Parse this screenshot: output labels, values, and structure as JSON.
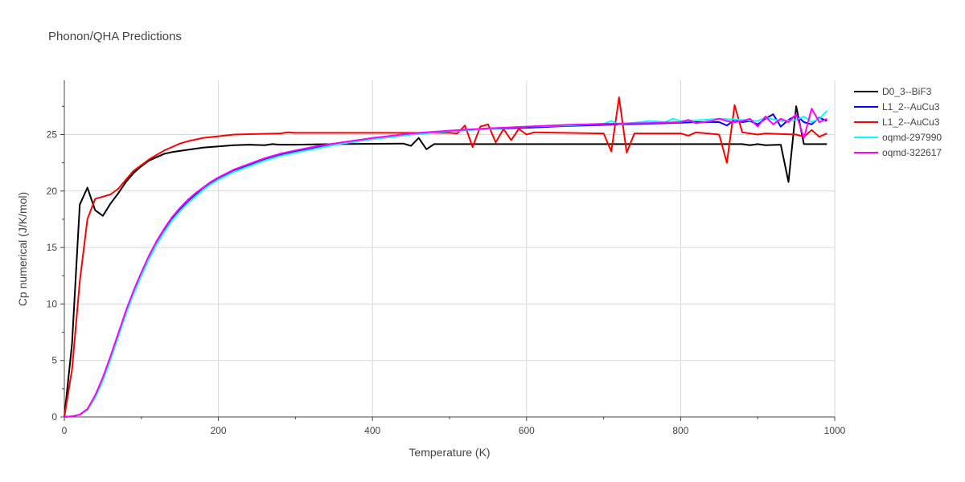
{
  "chart_data": {
    "type": "line",
    "title": "Phonon/QHA Predictions",
    "xlabel": "Temperature (K)",
    "ylabel": "Cp numerical (J/K/mol)",
    "xlim": [
      0,
      1000
    ],
    "ylim": [
      0,
      29.8
    ],
    "xticks": [
      0,
      200,
      400,
      600,
      800,
      1000
    ],
    "yticks": [
      0,
      5,
      10,
      15,
      20,
      25
    ],
    "grid": true,
    "legend_position": "top-right",
    "series": [
      {
        "name": "D0_3--BiF3",
        "color": "#000000",
        "points": [
          [
            0,
            0
          ],
          [
            10,
            6.5
          ],
          [
            20,
            18.8
          ],
          [
            30,
            20.3
          ],
          [
            40,
            18.3
          ],
          [
            50,
            17.8
          ],
          [
            60,
            18.9
          ],
          [
            70,
            19.8
          ],
          [
            80,
            20.8
          ],
          [
            90,
            21.6
          ],
          [
            100,
            22.2
          ],
          [
            110,
            22.7
          ],
          [
            120,
            23.0
          ],
          [
            130,
            23.3
          ],
          [
            140,
            23.45
          ],
          [
            150,
            23.55
          ],
          [
            160,
            23.65
          ],
          [
            170,
            23.75
          ],
          [
            180,
            23.85
          ],
          [
            200,
            23.95
          ],
          [
            220,
            24.05
          ],
          [
            240,
            24.1
          ],
          [
            260,
            24.05
          ],
          [
            270,
            24.15
          ],
          [
            280,
            24.1
          ],
          [
            300,
            24.1
          ],
          [
            350,
            24.15
          ],
          [
            400,
            24.18
          ],
          [
            440,
            24.2
          ],
          [
            450,
            24.0
          ],
          [
            460,
            24.7
          ],
          [
            470,
            23.7
          ],
          [
            480,
            24.15
          ],
          [
            500,
            24.15
          ],
          [
            600,
            24.15
          ],
          [
            700,
            24.15
          ],
          [
            800,
            24.15
          ],
          [
            850,
            24.15
          ],
          [
            880,
            24.15
          ],
          [
            890,
            24.05
          ],
          [
            900,
            24.15
          ],
          [
            910,
            24.05
          ],
          [
            930,
            24.1
          ],
          [
            940,
            20.8
          ],
          [
            950,
            27.5
          ],
          [
            960,
            24.15
          ],
          [
            970,
            24.15
          ],
          [
            990,
            24.15
          ]
        ]
      },
      {
        "name": "L1_2--AuCu3",
        "color": "#0000ff",
        "points": [
          [
            0,
            0
          ],
          [
            10,
            0.05
          ],
          [
            20,
            0.2
          ],
          [
            30,
            0.7
          ],
          [
            40,
            1.8
          ],
          [
            50,
            3.4
          ],
          [
            60,
            5.3
          ],
          [
            70,
            7.3
          ],
          [
            80,
            9.3
          ],
          [
            90,
            11.1
          ],
          [
            100,
            12.7
          ],
          [
            110,
            14.2
          ],
          [
            120,
            15.5
          ],
          [
            130,
            16.6
          ],
          [
            140,
            17.6
          ],
          [
            150,
            18.4
          ],
          [
            160,
            19.1
          ],
          [
            170,
            19.7
          ],
          [
            180,
            20.2
          ],
          [
            190,
            20.7
          ],
          [
            200,
            21.1
          ],
          [
            220,
            21.8
          ],
          [
            240,
            22.3
          ],
          [
            260,
            22.8
          ],
          [
            280,
            23.2
          ],
          [
            300,
            23.5
          ],
          [
            330,
            23.9
          ],
          [
            360,
            24.2
          ],
          [
            400,
            24.6
          ],
          [
            450,
            25.0
          ],
          [
            500,
            25.3
          ],
          [
            550,
            25.5
          ],
          [
            600,
            25.6
          ],
          [
            650,
            25.75
          ],
          [
            700,
            25.85
          ],
          [
            750,
            25.95
          ],
          [
            780,
            26.0
          ],
          [
            800,
            26.05
          ],
          [
            820,
            26.1
          ],
          [
            850,
            26.1
          ],
          [
            860,
            25.8
          ],
          [
            870,
            26.3
          ],
          [
            880,
            26.1
          ],
          [
            890,
            26.2
          ],
          [
            900,
            25.9
          ],
          [
            910,
            26.4
          ],
          [
            920,
            26.8
          ],
          [
            930,
            25.7
          ],
          [
            940,
            26.3
          ],
          [
            950,
            26.7
          ],
          [
            960,
            26.1
          ],
          [
            970,
            25.9
          ],
          [
            980,
            26.5
          ],
          [
            990,
            26.2
          ]
        ]
      },
      {
        "name": "L1_2--AuCu3",
        "color": "#ff0000",
        "points": [
          [
            0,
            0
          ],
          [
            10,
            4.2
          ],
          [
            20,
            12.0
          ],
          [
            30,
            17.5
          ],
          [
            40,
            19.3
          ],
          [
            50,
            19.5
          ],
          [
            60,
            19.7
          ],
          [
            70,
            20.2
          ],
          [
            80,
            21.0
          ],
          [
            90,
            21.8
          ],
          [
            100,
            22.3
          ],
          [
            110,
            22.8
          ],
          [
            120,
            23.2
          ],
          [
            130,
            23.6
          ],
          [
            140,
            23.9
          ],
          [
            150,
            24.2
          ],
          [
            160,
            24.4
          ],
          [
            180,
            24.7
          ],
          [
            200,
            24.85
          ],
          [
            220,
            25.0
          ],
          [
            250,
            25.05
          ],
          [
            280,
            25.1
          ],
          [
            290,
            25.2
          ],
          [
            300,
            25.15
          ],
          [
            350,
            25.15
          ],
          [
            400,
            25.15
          ],
          [
            450,
            25.15
          ],
          [
            500,
            25.15
          ],
          [
            510,
            25.1
          ],
          [
            520,
            25.8
          ],
          [
            530,
            23.9
          ],
          [
            540,
            25.7
          ],
          [
            550,
            25.9
          ],
          [
            560,
            24.3
          ],
          [
            570,
            25.5
          ],
          [
            580,
            24.5
          ],
          [
            590,
            25.5
          ],
          [
            600,
            25.0
          ],
          [
            610,
            25.2
          ],
          [
            700,
            25.1
          ],
          [
            710,
            23.5
          ],
          [
            720,
            28.3
          ],
          [
            730,
            23.4
          ],
          [
            740,
            25.1
          ],
          [
            800,
            25.1
          ],
          [
            810,
            24.9
          ],
          [
            820,
            25.2
          ],
          [
            850,
            25.0
          ],
          [
            860,
            22.5
          ],
          [
            870,
            27.6
          ],
          [
            880,
            25.2
          ],
          [
            900,
            25.0
          ],
          [
            910,
            25.1
          ],
          [
            950,
            25.0
          ],
          [
            960,
            24.8
          ],
          [
            970,
            25.4
          ],
          [
            980,
            24.8
          ],
          [
            990,
            25.1
          ]
        ]
      },
      {
        "name": "oqmd-297990",
        "color": "#00ffff",
        "points": [
          [
            0,
            0
          ],
          [
            10,
            0.05
          ],
          [
            20,
            0.2
          ],
          [
            30,
            0.6
          ],
          [
            40,
            1.7
          ],
          [
            50,
            3.2
          ],
          [
            60,
            5.1
          ],
          [
            70,
            7.1
          ],
          [
            80,
            9.1
          ],
          [
            90,
            10.9
          ],
          [
            100,
            12.5
          ],
          [
            110,
            14.0
          ],
          [
            120,
            15.3
          ],
          [
            130,
            16.4
          ],
          [
            140,
            17.4
          ],
          [
            150,
            18.2
          ],
          [
            160,
            18.9
          ],
          [
            170,
            19.5
          ],
          [
            180,
            20.1
          ],
          [
            190,
            20.6
          ],
          [
            200,
            21.0
          ],
          [
            220,
            21.7
          ],
          [
            240,
            22.2
          ],
          [
            260,
            22.7
          ],
          [
            280,
            23.1
          ],
          [
            300,
            23.4
          ],
          [
            330,
            23.8
          ],
          [
            360,
            24.2
          ],
          [
            400,
            24.6
          ],
          [
            450,
            25.0
          ],
          [
            500,
            25.3
          ],
          [
            550,
            25.5
          ],
          [
            600,
            25.7
          ],
          [
            650,
            25.8
          ],
          [
            700,
            25.95
          ],
          [
            710,
            26.2
          ],
          [
            720,
            25.9
          ],
          [
            760,
            26.2
          ],
          [
            780,
            26.1
          ],
          [
            790,
            26.4
          ],
          [
            800,
            26.2
          ],
          [
            830,
            26.3
          ],
          [
            850,
            26.4
          ],
          [
            880,
            26.3
          ],
          [
            900,
            26.2
          ],
          [
            910,
            26.5
          ],
          [
            930,
            26.2
          ],
          [
            950,
            26.3
          ],
          [
            960,
            26.6
          ],
          [
            970,
            26.1
          ],
          [
            980,
            26.4
          ],
          [
            990,
            27.1
          ]
        ]
      },
      {
        "name": "oqmd-322617",
        "color": "#ff00ff",
        "points": [
          [
            0,
            0
          ],
          [
            10,
            0.05
          ],
          [
            20,
            0.2
          ],
          [
            30,
            0.7
          ],
          [
            40,
            1.9
          ],
          [
            50,
            3.5
          ],
          [
            60,
            5.4
          ],
          [
            70,
            7.4
          ],
          [
            80,
            9.4
          ],
          [
            90,
            11.2
          ],
          [
            100,
            12.8
          ],
          [
            110,
            14.3
          ],
          [
            120,
            15.6
          ],
          [
            130,
            16.7
          ],
          [
            140,
            17.7
          ],
          [
            150,
            18.5
          ],
          [
            160,
            19.2
          ],
          [
            170,
            19.8
          ],
          [
            180,
            20.3
          ],
          [
            190,
            20.8
          ],
          [
            200,
            21.2
          ],
          [
            220,
            21.9
          ],
          [
            240,
            22.4
          ],
          [
            260,
            22.9
          ],
          [
            280,
            23.3
          ],
          [
            300,
            23.6
          ],
          [
            330,
            24.0
          ],
          [
            360,
            24.3
          ],
          [
            400,
            24.7
          ],
          [
            450,
            25.1
          ],
          [
            500,
            25.35
          ],
          [
            550,
            25.55
          ],
          [
            600,
            25.7
          ],
          [
            650,
            25.85
          ],
          [
            700,
            25.95
          ],
          [
            750,
            26.0
          ],
          [
            800,
            26.1
          ],
          [
            810,
            26.3
          ],
          [
            820,
            26.0
          ],
          [
            840,
            26.2
          ],
          [
            850,
            26.4
          ],
          [
            860,
            26.2
          ],
          [
            870,
            26.1
          ],
          [
            880,
            26.2
          ],
          [
            890,
            26.4
          ],
          [
            900,
            25.7
          ],
          [
            910,
            26.6
          ],
          [
            920,
            25.9
          ],
          [
            930,
            26.4
          ],
          [
            940,
            26.1
          ],
          [
            950,
            26.8
          ],
          [
            960,
            24.7
          ],
          [
            970,
            27.3
          ],
          [
            980,
            26.1
          ],
          [
            990,
            26.4
          ]
        ]
      }
    ]
  }
}
